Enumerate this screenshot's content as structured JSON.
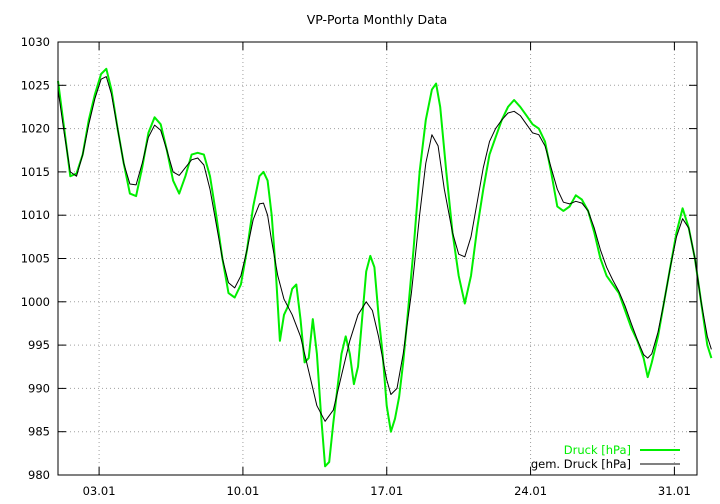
{
  "chart_data": {
    "type": "line",
    "title": "VP-Porta Monthly Data",
    "xlabel": "",
    "ylabel": "",
    "x_range_days": [
      1,
      32.1
    ],
    "xlim_note_unit": "day of month (January)",
    "ylim": [
      980,
      1030
    ],
    "y_ticks": [
      980,
      985,
      990,
      995,
      1000,
      1005,
      1010,
      1015,
      1020,
      1025,
      1030
    ],
    "x_ticks": [
      {
        "day": 3,
        "label": "03.01"
      },
      {
        "day": 10,
        "label": "10.01"
      },
      {
        "day": 17,
        "label": "17.01"
      },
      {
        "day": 24,
        "label": "24.01"
      },
      {
        "day": 31,
        "label": "31.01"
      }
    ],
    "grid": true,
    "legend_position": "bottom-right",
    "series": [
      {
        "name": "Druck [hPa]",
        "color": "#00ee00",
        "points": [
          [
            1.0,
            1025.5
          ],
          [
            1.3,
            1020.0
          ],
          [
            1.6,
            1014.5
          ],
          [
            1.9,
            1014.8
          ],
          [
            2.2,
            1017.0
          ],
          [
            2.5,
            1021.0
          ],
          [
            2.8,
            1024.0
          ],
          [
            3.1,
            1026.3
          ],
          [
            3.35,
            1026.9
          ],
          [
            3.6,
            1024.5
          ],
          [
            3.9,
            1020.0
          ],
          [
            4.2,
            1016.0
          ],
          [
            4.5,
            1012.5
          ],
          [
            4.8,
            1012.2
          ],
          [
            5.1,
            1015.5
          ],
          [
            5.4,
            1019.5
          ],
          [
            5.7,
            1021.3
          ],
          [
            6.0,
            1020.5
          ],
          [
            6.3,
            1017.5
          ],
          [
            6.6,
            1014.0
          ],
          [
            6.9,
            1012.5
          ],
          [
            7.2,
            1014.5
          ],
          [
            7.5,
            1017.0
          ],
          [
            7.8,
            1017.2
          ],
          [
            8.1,
            1017.0
          ],
          [
            8.4,
            1014.5
          ],
          [
            8.7,
            1010.0
          ],
          [
            9.0,
            1005.0
          ],
          [
            9.3,
            1001.0
          ],
          [
            9.6,
            1000.5
          ],
          [
            9.9,
            1002.0
          ],
          [
            10.2,
            1006.0
          ],
          [
            10.5,
            1011.0
          ],
          [
            10.8,
            1014.5
          ],
          [
            11.0,
            1015.0
          ],
          [
            11.2,
            1014.0
          ],
          [
            11.4,
            1010.0
          ],
          [
            11.6,
            1003.5
          ],
          [
            11.8,
            995.5
          ],
          [
            12.0,
            998.5
          ],
          [
            12.2,
            999.5
          ],
          [
            12.4,
            1001.5
          ],
          [
            12.6,
            1002.0
          ],
          [
            12.8,
            998.0
          ],
          [
            13.0,
            993.0
          ],
          [
            13.2,
            993.5
          ],
          [
            13.4,
            998.0
          ],
          [
            13.6,
            994.0
          ],
          [
            13.8,
            987.0
          ],
          [
            14.0,
            981.0
          ],
          [
            14.2,
            981.5
          ],
          [
            14.4,
            986.0
          ],
          [
            14.6,
            990.0
          ],
          [
            14.8,
            994.0
          ],
          [
            15.0,
            996.0
          ],
          [
            15.2,
            994.0
          ],
          [
            15.4,
            990.5
          ],
          [
            15.6,
            992.5
          ],
          [
            15.8,
            998.0
          ],
          [
            16.0,
            1003.5
          ],
          [
            16.2,
            1005.3
          ],
          [
            16.4,
            1004.0
          ],
          [
            16.6,
            998.5
          ],
          [
            16.8,
            994.0
          ],
          [
            17.0,
            988.0
          ],
          [
            17.2,
            985.0
          ],
          [
            17.4,
            986.5
          ],
          [
            17.6,
            989.0
          ],
          [
            17.8,
            993.0
          ],
          [
            18.0,
            998.0
          ],
          [
            18.3,
            1006.0
          ],
          [
            18.6,
            1015.0
          ],
          [
            18.9,
            1021.0
          ],
          [
            19.2,
            1024.5
          ],
          [
            19.4,
            1025.2
          ],
          [
            19.6,
            1022.5
          ],
          [
            19.9,
            1015.0
          ],
          [
            20.2,
            1008.0
          ],
          [
            20.5,
            1003.0
          ],
          [
            20.8,
            999.8
          ],
          [
            21.1,
            1003.0
          ],
          [
            21.4,
            1008.5
          ],
          [
            21.7,
            1013.0
          ],
          [
            22.0,
            1017.0
          ],
          [
            22.3,
            1019.0
          ],
          [
            22.6,
            1021.0
          ],
          [
            22.9,
            1022.5
          ],
          [
            23.2,
            1023.3
          ],
          [
            23.5,
            1022.5
          ],
          [
            23.8,
            1021.5
          ],
          [
            24.1,
            1020.5
          ],
          [
            24.4,
            1020.0
          ],
          [
            24.7,
            1018.5
          ],
          [
            25.0,
            1015.0
          ],
          [
            25.3,
            1011.0
          ],
          [
            25.6,
            1010.5
          ],
          [
            25.9,
            1011.0
          ],
          [
            26.2,
            1012.3
          ],
          [
            26.5,
            1011.8
          ],
          [
            26.8,
            1010.5
          ],
          [
            27.1,
            1008.0
          ],
          [
            27.4,
            1005.0
          ],
          [
            27.7,
            1003.0
          ],
          [
            28.0,
            1002.0
          ],
          [
            28.3,
            1001.0
          ],
          [
            28.6,
            999.0
          ],
          [
            28.9,
            997.0
          ],
          [
            29.2,
            995.5
          ],
          [
            29.5,
            993.5
          ],
          [
            29.7,
            991.3
          ],
          [
            29.9,
            993.0
          ],
          [
            30.2,
            996.0
          ],
          [
            30.5,
            1000.0
          ],
          [
            30.8,
            1004.0
          ],
          [
            31.1,
            1008.0
          ],
          [
            31.4,
            1010.8
          ],
          [
            31.7,
            1008.5
          ],
          [
            32.0,
            1005.0
          ],
          [
            32.3,
            1000.0
          ],
          [
            32.6,
            995.0
          ],
          [
            32.8,
            993.5
          ]
        ]
      },
      {
        "name": "gem. Druck [hPa]",
        "color": "#000000",
        "points": [
          [
            1.0,
            1024.5
          ],
          [
            1.3,
            1019.5
          ],
          [
            1.6,
            1015.0
          ],
          [
            1.9,
            1014.5
          ],
          [
            2.2,
            1017.0
          ],
          [
            2.5,
            1020.5
          ],
          [
            2.8,
            1023.5
          ],
          [
            3.1,
            1025.7
          ],
          [
            3.35,
            1026.0
          ],
          [
            3.6,
            1024.0
          ],
          [
            3.9,
            1020.0
          ],
          [
            4.2,
            1016.0
          ],
          [
            4.5,
            1013.6
          ],
          [
            4.8,
            1013.5
          ],
          [
            5.1,
            1016.0
          ],
          [
            5.4,
            1019.0
          ],
          [
            5.7,
            1020.4
          ],
          [
            6.0,
            1019.8
          ],
          [
            6.3,
            1017.5
          ],
          [
            6.6,
            1015.0
          ],
          [
            6.9,
            1014.6
          ],
          [
            7.2,
            1015.5
          ],
          [
            7.5,
            1016.4
          ],
          [
            7.8,
            1016.6
          ],
          [
            8.1,
            1015.8
          ],
          [
            8.4,
            1013.0
          ],
          [
            8.7,
            1009.0
          ],
          [
            9.0,
            1005.0
          ],
          [
            9.3,
            1002.2
          ],
          [
            9.6,
            1001.6
          ],
          [
            9.9,
            1003.0
          ],
          [
            10.2,
            1006.0
          ],
          [
            10.5,
            1009.5
          ],
          [
            10.8,
            1011.3
          ],
          [
            11.0,
            1011.4
          ],
          [
            11.2,
            1010.0
          ],
          [
            11.4,
            1007.0
          ],
          [
            11.7,
            1003.0
          ],
          [
            12.0,
            1000.3
          ],
          [
            12.4,
            998.5
          ],
          [
            12.8,
            996.0
          ],
          [
            13.2,
            992.0
          ],
          [
            13.6,
            988.0
          ],
          [
            14.0,
            986.2
          ],
          [
            14.4,
            987.5
          ],
          [
            14.8,
            991.5
          ],
          [
            15.2,
            995.5
          ],
          [
            15.6,
            998.5
          ],
          [
            16.0,
            1000.0
          ],
          [
            16.3,
            999.0
          ],
          [
            16.6,
            996.0
          ],
          [
            17.0,
            991.0
          ],
          [
            17.2,
            989.3
          ],
          [
            17.5,
            990.0
          ],
          [
            17.8,
            994.0
          ],
          [
            18.2,
            1001.0
          ],
          [
            18.6,
            1010.0
          ],
          [
            18.9,
            1016.0
          ],
          [
            19.2,
            1019.3
          ],
          [
            19.5,
            1018.0
          ],
          [
            19.8,
            1013.0
          ],
          [
            20.2,
            1008.0
          ],
          [
            20.5,
            1005.5
          ],
          [
            20.8,
            1005.2
          ],
          [
            21.1,
            1007.5
          ],
          [
            21.4,
            1011.5
          ],
          [
            21.7,
            1015.5
          ],
          [
            22.0,
            1018.5
          ],
          [
            22.3,
            1020.0
          ],
          [
            22.6,
            1021.0
          ],
          [
            22.9,
            1021.8
          ],
          [
            23.2,
            1022.0
          ],
          [
            23.5,
            1021.5
          ],
          [
            23.8,
            1020.5
          ],
          [
            24.1,
            1019.5
          ],
          [
            24.4,
            1019.3
          ],
          [
            24.7,
            1018.0
          ],
          [
            25.0,
            1015.5
          ],
          [
            25.3,
            1013.0
          ],
          [
            25.6,
            1011.5
          ],
          [
            25.9,
            1011.3
          ],
          [
            26.2,
            1011.6
          ],
          [
            26.5,
            1011.4
          ],
          [
            26.8,
            1010.5
          ],
          [
            27.1,
            1008.5
          ],
          [
            27.4,
            1006.0
          ],
          [
            27.7,
            1004.0
          ],
          [
            28.0,
            1002.5
          ],
          [
            28.3,
            1001.2
          ],
          [
            28.6,
            999.5
          ],
          [
            28.9,
            997.5
          ],
          [
            29.2,
            995.6
          ],
          [
            29.5,
            993.9
          ],
          [
            29.7,
            993.5
          ],
          [
            29.9,
            994.0
          ],
          [
            30.2,
            996.5
          ],
          [
            30.5,
            1000.0
          ],
          [
            30.8,
            1004.0
          ],
          [
            31.1,
            1007.5
          ],
          [
            31.4,
            1009.6
          ],
          [
            31.7,
            1008.5
          ],
          [
            32.0,
            1005.0
          ],
          [
            32.3,
            1000.0
          ],
          [
            32.6,
            996.0
          ],
          [
            32.8,
            994.5
          ]
        ]
      }
    ]
  }
}
